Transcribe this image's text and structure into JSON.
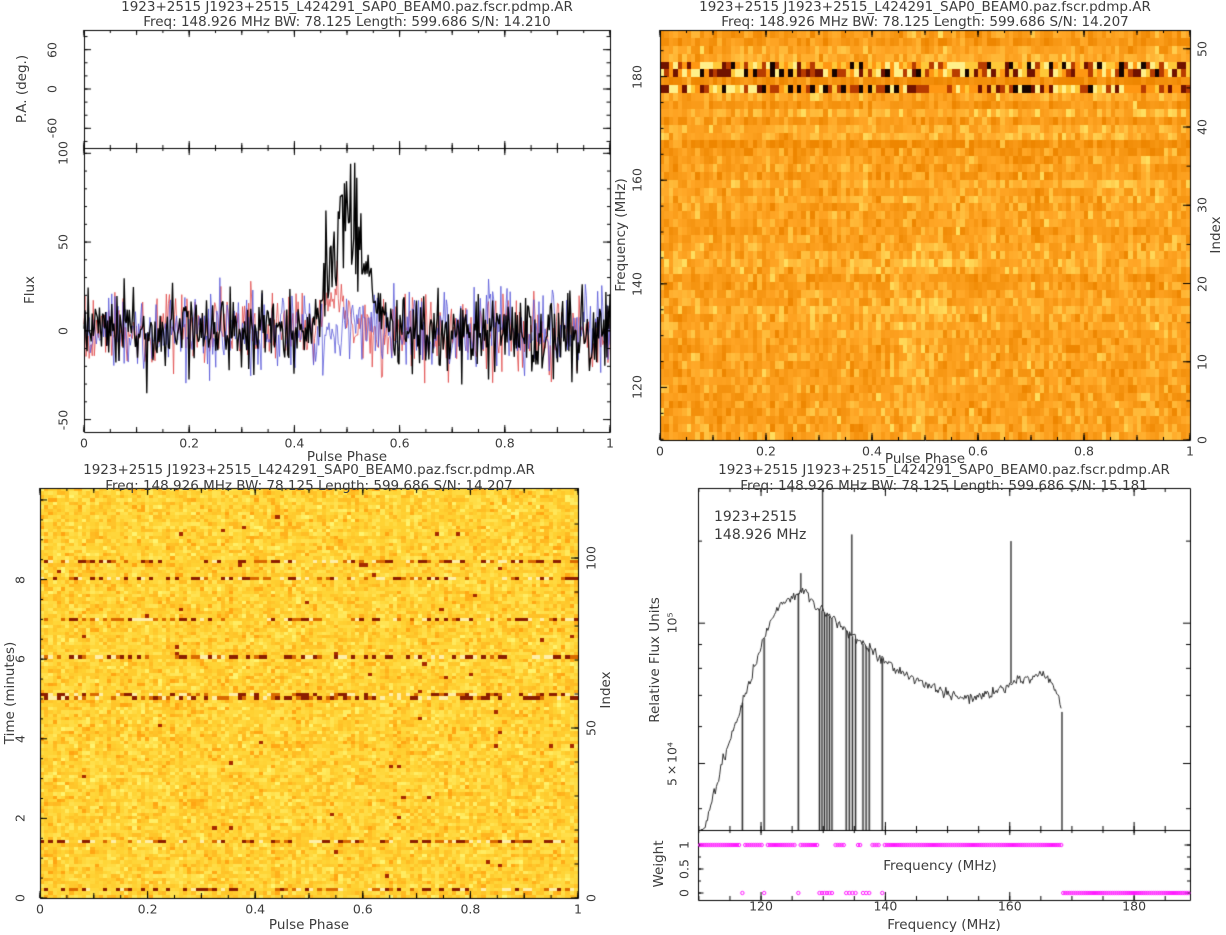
{
  "style": {
    "background": "#ffffff",
    "frame_color": "#000000",
    "text_color": "#3c3c3c",
    "weight_color": "#ff17ff"
  },
  "chart_data": [
    {
      "id": "profile",
      "type": "line",
      "position": "top-left",
      "title": "1923+2515 J1923+2515_L424291_SAP0_BEAM0.paz.fscr.pdmp.AR",
      "subtitle": "Freq: 148.926 MHz BW: 78.125 Length: 599.686 S/N: 14.210",
      "xlabel": "Pulse Phase",
      "x_ticks": [
        0,
        0.2,
        0.4,
        0.6,
        0.8,
        1
      ],
      "x_range": [
        0,
        1
      ],
      "pa_axis": {
        "label": "P.A. (deg.)",
        "ticks": [
          60,
          0,
          -60
        ],
        "range": [
          -90,
          90
        ],
        "points": []
      },
      "flux_axis": {
        "label": "Flux",
        "ticks": [
          100,
          50,
          0,
          -50
        ],
        "range": [
          -57,
          103
        ]
      },
      "bins": 512,
      "series": [
        {
          "name": "linear-polarization",
          "color": "#e04545",
          "noise_sigma": 10,
          "pulse": {
            "center": 0.478,
            "width": 0.025,
            "peak": 30
          }
        },
        {
          "name": "circular-polarization",
          "color": "#5252d6",
          "noise_sigma": 10.5,
          "pulse": null
        },
        {
          "name": "total-intensity",
          "color": "#000000",
          "noise_sigma": 11,
          "pulse": {
            "center": 0.503,
            "width": 0.042,
            "peak": 88
          }
        }
      ]
    },
    {
      "id": "phase-frequency",
      "type": "heatmap",
      "position": "top-right",
      "title": "1923+2515 J1923+2515_L424291_SAP0_BEAM0.paz.fscr.pdmp.AR",
      "subtitle": "Freq: 148.926 MHz BW: 78.125 Length: 599.686 S/N: 14.207",
      "xlabel": "Pulse Phase",
      "ylabel": "Frequency (MHz)",
      "ylabel_right": "Index",
      "x_ticks": [
        0,
        0.2,
        0.4,
        0.6,
        0.8,
        1
      ],
      "x_range": [
        0,
        1
      ],
      "y_ticks": [
        120,
        140,
        160,
        180
      ],
      "y_range": [
        109.86,
        188.99
      ],
      "index_ticks": [
        0,
        10,
        20,
        30,
        40,
        50
      ],
      "index_range": [
        0,
        52.4
      ],
      "rows": 52,
      "cols": 120,
      "colormap": [
        "#EE8600",
        "#FFA524",
        "#FFDF60"
      ],
      "rfi_palette": [
        "#160400",
        "#701200",
        "#b83c00",
        "#ff9712",
        "#ffc838",
        "#fff08a"
      ],
      "rfi_rows": [
        44,
        46,
        47
      ],
      "banded_rows_above": 36,
      "pulse_column": {
        "center": 0.485,
        "width": 0.05,
        "boost": 0.17
      }
    },
    {
      "id": "phase-time",
      "type": "heatmap",
      "position": "bottom-left",
      "title": "1923+2515 J1923+2515_L424291_SAP0_BEAM0.paz.fscr.pdmp.AR",
      "subtitle": "Freq: 148.926 MHz BW: 78.125 Length: 599.686 S/N: 14.207",
      "xlabel": "Pulse Phase",
      "ylabel": "Time (minutes)",
      "ylabel_right": "Index",
      "x_ticks": [
        0,
        0.2,
        0.4,
        0.6,
        0.8,
        1
      ],
      "x_range": [
        0,
        1
      ],
      "y_ticks": [
        0,
        2,
        4,
        6,
        8
      ],
      "y_range": [
        0,
        10.3
      ],
      "index_ticks": [
        0,
        50,
        100
      ],
      "index_range": [
        0,
        120.6
      ],
      "rows": 120,
      "cols": 128,
      "colormap": [
        "#FFA512",
        "#FFD334",
        "#FFF470"
      ],
      "rfi_palette": [
        "#8c1e00",
        "#d96a00",
        "#ffefa8"
      ],
      "rfi_rows": [
        2,
        16,
        58,
        59,
        70,
        81,
        93,
        98
      ]
    },
    {
      "id": "bandpass",
      "type": "line",
      "position": "bottom-right",
      "title": "1923+2515 J1923+2515_L424291_SAP0_BEAM0.paz.fscr.pdmp.AR",
      "subtitle": "Freq: 148.926 MHz BW: 78.125 Length: 599.686 S/N: 15.181",
      "xlabel": "Frequency (MHz)",
      "xlabel_inner": "Frequency (MHz)",
      "ylabel": "Relative Flux Units",
      "annotation": [
        "1923+2515",
        "148.926 MHz"
      ],
      "x_ticks": [
        120,
        140,
        160,
        180
      ],
      "x_range": [
        109.86,
        188.99
      ],
      "y_scale": "log",
      "y_ticks": [
        {
          "label": "10⁵",
          "value": 100000
        },
        {
          "label": "5×10⁴",
          "value": 50000
        }
      ],
      "y_minor_ticks": [
        40000,
        60000,
        70000,
        80000,
        90000,
        150000
      ],
      "y_range": [
        36000,
        195000
      ],
      "curve": [
        [
          110.3,
          33000
        ],
        [
          111,
          36000
        ],
        [
          112,
          41500
        ],
        [
          113,
          46000
        ],
        [
          114,
          51000
        ],
        [
          115,
          56000
        ],
        [
          116,
          61500
        ],
        [
          117,
          67500
        ],
        [
          118,
          74000
        ],
        [
          119,
          81000
        ],
        [
          120,
          89000
        ],
        [
          121,
          97000
        ],
        [
          122,
          104000
        ],
        [
          123,
          109000
        ],
        [
          124,
          112000
        ],
        [
          125,
          114000
        ],
        [
          126,
          116000
        ],
        [
          127,
          118500
        ],
        [
          127.6,
          115500
        ],
        [
          128.2,
          111500
        ],
        [
          129,
          108000
        ],
        [
          130,
          106000
        ],
        [
          131,
          103500
        ],
        [
          132,
          101000
        ],
        [
          133,
          98500
        ],
        [
          134,
          95500
        ],
        [
          135,
          93000
        ],
        [
          136,
          91000
        ],
        [
          137,
          89000
        ],
        [
          138,
          87000
        ],
        [
          139,
          85000
        ],
        [
          140,
          83000
        ],
        [
          141.5,
          80500
        ],
        [
          143,
          78000
        ],
        [
          145,
          75500
        ],
        [
          147,
          73200
        ],
        [
          149,
          71500
        ],
        [
          151,
          70000
        ],
        [
          153,
          69000
        ],
        [
          155,
          69400
        ],
        [
          157,
          70800
        ],
        [
          158.5,
          72300
        ],
        [
          160,
          74200
        ],
        [
          161.5,
          75400
        ],
        [
          163,
          76200
        ],
        [
          164.5,
          77200
        ],
        [
          166,
          76200
        ],
        [
          167,
          73500
        ],
        [
          168,
          68500
        ],
        [
          168.4,
          64500
        ]
      ],
      "cutoff": 168.4,
      "spikes_down": [
        117.0,
        120.5,
        126.0,
        129.4,
        129.8,
        130.2,
        130.6,
        131.0,
        131.4,
        133.7,
        134.2,
        134.7,
        135.2,
        136.4,
        136.9,
        137.4,
        139.5
      ],
      "spikes_up": [
        [
          126.4,
          128000
        ],
        [
          129.9,
          200000
        ],
        [
          134.6,
          155000
        ],
        [
          160.2,
          150000
        ]
      ],
      "weight_axis": {
        "label": "Weight",
        "ticks": [
          1,
          0.5,
          0
        ],
        "one_segments": [
          [
            110.2,
            168.3
          ]
        ],
        "zero_segments": [
          [
            168.6,
            188.8
          ]
        ],
        "zero_points": [
          117.0,
          120.5,
          126.0,
          129.4,
          129.8,
          130.2,
          130.6,
          131.0,
          131.4,
          133.7,
          134.2,
          134.7,
          135.2,
          136.4,
          136.9,
          137.4,
          139.5
        ]
      }
    }
  ]
}
